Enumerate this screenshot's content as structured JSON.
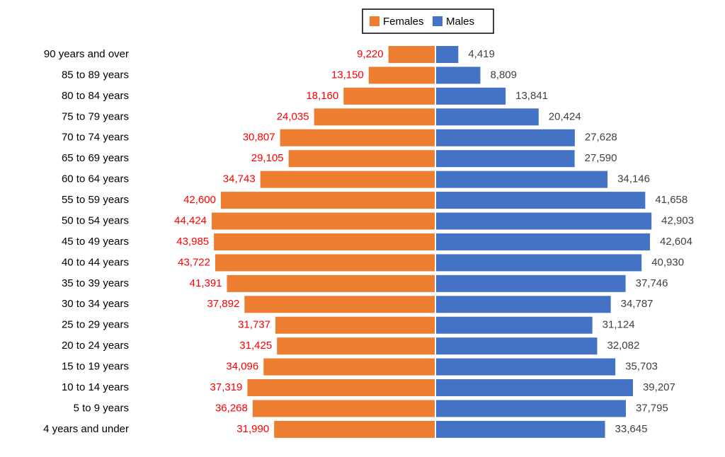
{
  "chart_data": {
    "type": "population-pyramid",
    "categories": [
      "90 years and over",
      "85 to 89 years",
      "80 to 84 years",
      "75 to 79 years",
      "70 to 74 years",
      "65 to 69 years",
      "60 to 64 years",
      "55 to 59 years",
      "50 to 54 years",
      "45 to 49 years",
      "40 to 44 years",
      "35 to 39 years",
      "30 to 34 years",
      "25 to 29 years",
      "20 to 24 years",
      "15 to 19 years",
      "10 to 14 years",
      "5 to 9 years",
      "4 years and under"
    ],
    "series": [
      {
        "name": "Females",
        "color": "#ed7d31",
        "label_color": "#ff0000",
        "side": "left",
        "values": [
          9220,
          13150,
          18160,
          24035,
          30807,
          29105,
          34743,
          42600,
          44424,
          43985,
          43722,
          41391,
          37892,
          31737,
          31425,
          34096,
          37319,
          36268,
          31990
        ],
        "value_labels": [
          "9,220",
          "13,150",
          "18,160",
          "24,035",
          "30,807",
          "29,105",
          "34,743",
          "42,600",
          "44,424",
          "43,985",
          "43,722",
          "41,391",
          "37,892",
          "31,737",
          "31,425",
          "34,096",
          "37,319",
          "36,268",
          "31,990"
        ]
      },
      {
        "name": "Males",
        "color": "#4472c4",
        "label_color": "#404040",
        "side": "right",
        "values": [
          4419,
          8809,
          13841,
          20424,
          27628,
          27590,
          34146,
          41658,
          42903,
          42604,
          40930,
          37746,
          34787,
          31124,
          32082,
          35703,
          39207,
          37795,
          33645
        ],
        "value_labels": [
          "4,419",
          "8,809",
          "13,841",
          "20,424",
          "27,628",
          "27,590",
          "34,146",
          "41,658",
          "42,903",
          "42,604",
          "40,930",
          "37,746",
          "34,787",
          "31,124",
          "32,082",
          "35,703",
          "39,207",
          "37,795",
          "33,645"
        ]
      }
    ],
    "legend": "top"
  }
}
